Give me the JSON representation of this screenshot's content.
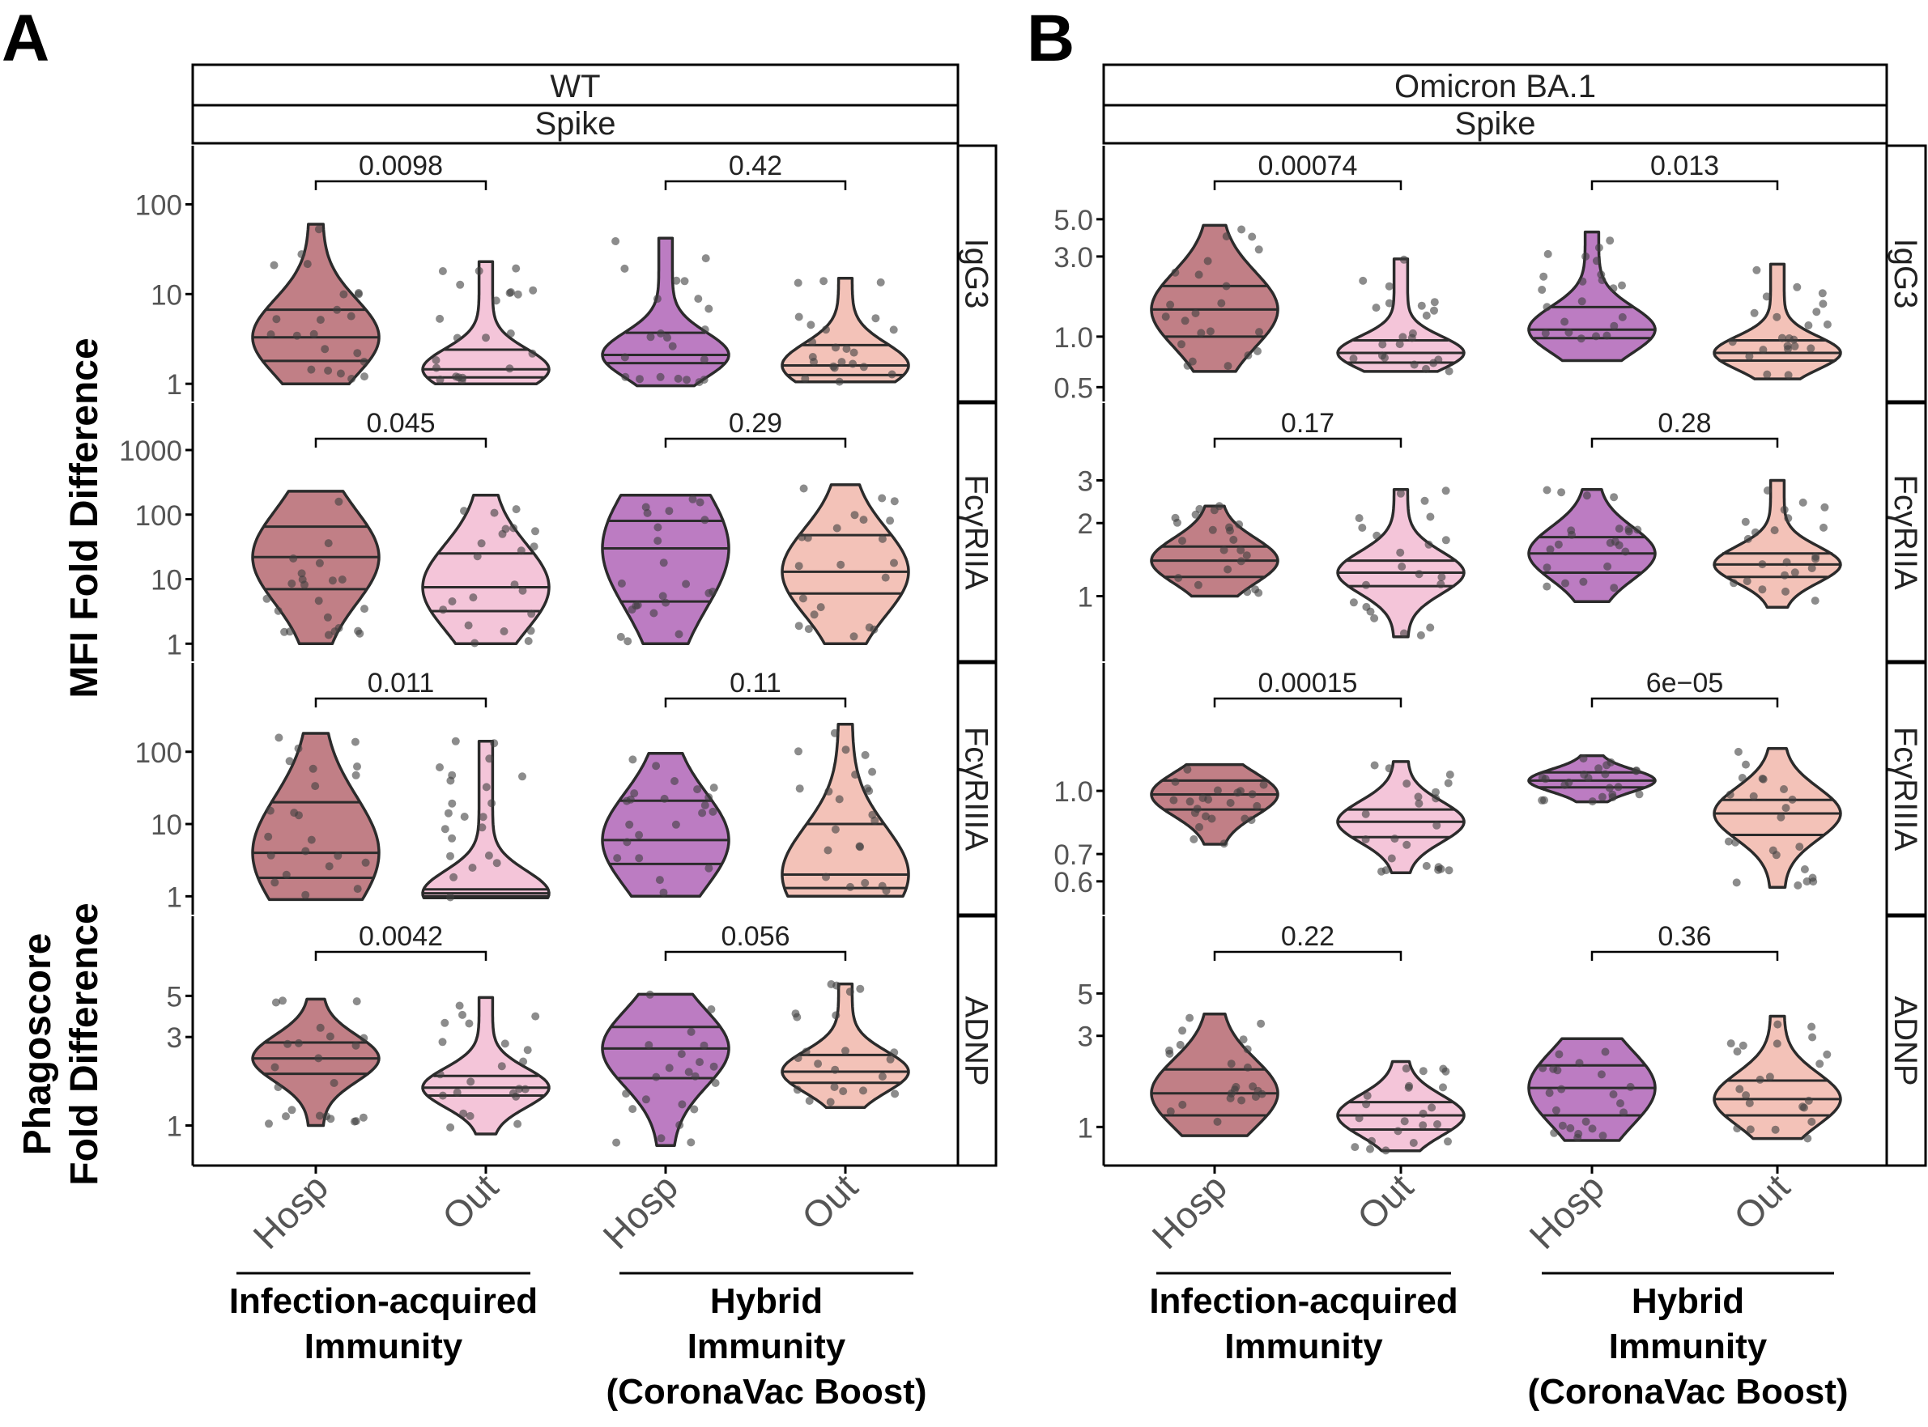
{
  "panels": [
    {
      "letter": "A",
      "strain": "WT",
      "antigen": "Spike",
      "rows": [
        {
          "label": "IgG3",
          "scale": "log",
          "ticks": [
            {
              "v": 1,
              "t": "1"
            },
            {
              "v": 10,
              "t": "10"
            },
            {
              "v": 100,
              "t": "100"
            }
          ],
          "range": [
            0.85,
            135
          ],
          "pvalues": [
            "0.0098",
            "0.42"
          ],
          "groups": [
            {
              "min": 1.0,
              "max": 60,
              "q": [
                1.8,
                3.3,
                6.7
              ]
            },
            {
              "min": 1.0,
              "max": 23,
              "q": [
                1.18,
                1.45,
                2.4
              ]
            },
            {
              "min": 0.95,
              "max": 42,
              "q": [
                1.7,
                2.1,
                3.7
              ]
            },
            {
              "min": 1.05,
              "max": 15,
              "q": [
                1.25,
                1.6,
                2.7
              ]
            }
          ]
        },
        {
          "label": "FcγRIIA",
          "scale": "log",
          "ticks": [
            {
              "v": 1,
              "t": "1"
            },
            {
              "v": 10,
              "t": "10"
            },
            {
              "v": 100,
              "t": "100"
            },
            {
              "v": 1000,
              "t": "1000"
            }
          ],
          "range": [
            0.8,
            1000
          ],
          "pvalues": [
            "0.045",
            "0.29"
          ],
          "groups": [
            {
              "min": 1.0,
              "max": 230,
              "q": [
                7.0,
                22,
                65
              ]
            },
            {
              "min": 1.0,
              "max": 200,
              "q": [
                3.2,
                7.5,
                25
              ]
            },
            {
              "min": 1.0,
              "max": 200,
              "q": [
                4.5,
                30,
                80
              ]
            },
            {
              "min": 1.0,
              "max": 290,
              "q": [
                6.0,
                13,
                48
              ]
            }
          ]
        },
        {
          "label": "FcγRIIIA",
          "scale": "log",
          "ticks": [
            {
              "v": 1,
              "t": "1"
            },
            {
              "v": 10,
              "t": "10"
            },
            {
              "v": 100,
              "t": "100"
            }
          ],
          "range": [
            0.8,
            380
          ],
          "pvalues": [
            "0.011",
            "0.11"
          ],
          "groups": [
            {
              "min": 0.9,
              "max": 180,
              "q": [
                1.8,
                4.0,
                20
              ]
            },
            {
              "min": 0.95,
              "max": 140,
              "q": [
                1.0,
                1.1,
                1.25
              ]
            },
            {
              "min": 1.0,
              "max": 95,
              "q": [
                2.8,
                6.0,
                21
              ]
            },
            {
              "min": 1.0,
              "max": 240,
              "q": [
                1.3,
                2.0,
                10
              ]
            }
          ]
        },
        {
          "label": "ADNP",
          "scale": "log",
          "ticks": [
            {
              "v": 1,
              "t": "1"
            },
            {
              "v": 3,
              "t": "3"
            },
            {
              "v": 5,
              "t": "5"
            }
          ],
          "range": [
            0.7,
            7.5
          ],
          "pvalues": [
            "0.0042",
            "0.056"
          ],
          "groups": [
            {
              "min": 1.0,
              "max": 4.8,
              "q": [
                1.9,
                2.3,
                2.8
              ]
            },
            {
              "min": 0.9,
              "max": 4.9,
              "q": [
                1.45,
                1.6,
                1.85
              ]
            },
            {
              "min": 0.78,
              "max": 5.1,
              "q": [
                1.8,
                2.6,
                3.4
              ]
            },
            {
              "min": 1.25,
              "max": 5.8,
              "q": [
                1.7,
                1.95,
                2.4
              ]
            }
          ]
        }
      ],
      "categories": [
        "Hosp",
        "Out",
        "Hosp",
        "Out"
      ],
      "brackets": [
        "Infection-acquired\nImmunity",
        "Hybrid\nImmunity\n(CoronaVac Boost)"
      ]
    },
    {
      "letter": "B",
      "strain": "Omicron BA.1",
      "antigen": "Spike",
      "rows": [
        {
          "label": "IgG3",
          "scale": "log",
          "ticks": [
            {
              "v": 0.5,
              "t": "0.5"
            },
            {
              "v": 1,
              "t": "1.0"
            },
            {
              "v": 3,
              "t": "3.0"
            },
            {
              "v": 5,
              "t": "5.0"
            }
          ],
          "range": [
            0.48,
            7.2
          ],
          "pvalues": [
            "0.00074",
            "0.013"
          ],
          "groups": [
            {
              "min": 0.62,
              "max": 4.6,
              "q": [
                1.0,
                1.45,
                2.0
              ]
            },
            {
              "min": 0.62,
              "max": 2.9,
              "q": [
                0.7,
                0.8,
                0.95
              ]
            },
            {
              "min": 0.72,
              "max": 4.2,
              "q": [
                0.98,
                1.1,
                1.5
              ]
            },
            {
              "min": 0.56,
              "max": 2.7,
              "q": [
                0.72,
                0.8,
                0.95
              ]
            }
          ]
        },
        {
          "label": "FcγRIIA",
          "scale": "log",
          "ticks": [
            {
              "v": 1,
              "t": "1"
            },
            {
              "v": 2,
              "t": "2"
            },
            {
              "v": 3,
              "t": "3"
            }
          ],
          "range": [
            0.6,
            4.0
          ],
          "pvalues": [
            "0.17",
            "0.28"
          ],
          "groups": [
            {
              "min": 1.0,
              "max": 2.35,
              "q": [
                1.2,
                1.4,
                1.6
              ]
            },
            {
              "min": 0.68,
              "max": 2.75,
              "q": [
                1.1,
                1.25,
                1.4
              ]
            },
            {
              "min": 0.95,
              "max": 2.75,
              "q": [
                1.25,
                1.5,
                1.75
              ]
            },
            {
              "min": 0.9,
              "max": 3.0,
              "q": [
                1.2,
                1.35,
                1.5
              ]
            }
          ]
        },
        {
          "label": "FcγRIIIA",
          "scale": "log",
          "ticks": [
            {
              "v": 0.6,
              "t": "0.6"
            },
            {
              "v": 0.7,
              "t": "0.7"
            },
            {
              "v": 1,
              "t": "1.0"
            }
          ],
          "range": [
            0.53,
            1.58
          ],
          "pvalues": [
            "0.00015",
            "6e−05"
          ],
          "groups": [
            {
              "min": 0.74,
              "max": 1.16,
              "q": [
                0.9,
                0.98,
                1.06
              ]
            },
            {
              "min": 0.63,
              "max": 1.18,
              "q": [
                0.77,
                0.84,
                0.9
              ]
            },
            {
              "min": 0.94,
              "max": 1.22,
              "q": [
                1.02,
                1.06,
                1.11
              ]
            },
            {
              "min": 0.58,
              "max": 1.27,
              "q": [
                0.78,
                0.88,
                0.95
              ]
            }
          ]
        },
        {
          "label": "ADNP",
          "scale": "log",
          "ticks": [
            {
              "v": 1,
              "t": "1"
            },
            {
              "v": 3,
              "t": "3"
            },
            {
              "v": 5,
              "t": "5"
            }
          ],
          "range": [
            0.72,
            7.2
          ],
          "pvalues": [
            "0.22",
            "0.36"
          ],
          "groups": [
            {
              "min": 0.9,
              "max": 3.9,
              "q": [
                1.15,
                1.5,
                2.0
              ]
            },
            {
              "min": 0.75,
              "max": 2.2,
              "q": [
                0.97,
                1.15,
                1.35
              ]
            },
            {
              "min": 0.85,
              "max": 2.9,
              "q": [
                1.15,
                1.6,
                2.1
              ]
            },
            {
              "min": 0.87,
              "max": 3.8,
              "q": [
                1.15,
                1.4,
                1.75
              ]
            }
          ]
        }
      ],
      "categories": [
        "Hosp",
        "Out",
        "Hosp",
        "Out"
      ],
      "brackets": [
        "Infection-acquired\nImmunity",
        "Hybrid\nImmunity\n(CoronaVac Boost)"
      ]
    }
  ],
  "ylabel_mfi": "MFI Fold Difference",
  "ylabel_phago": "Phagoscore\nFold Difference",
  "colors": {
    "hosp_infection": "#c17f86",
    "out_infection": "#f4c5d9",
    "hosp_hybrid": "#bc7cc2",
    "out_hybrid": "#f3c2b8",
    "outline": "#2b2b2b",
    "point": "#404040"
  }
}
